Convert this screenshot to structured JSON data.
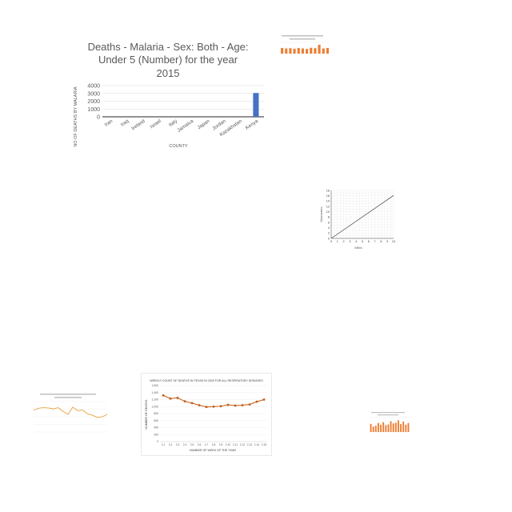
{
  "chart_data": [
    {
      "type": "bar",
      "title": "Deaths - Malaria - Sex: Both - Age: Under 5 (Number) for the year 2015",
      "title_lines": [
        "Deaths - Malaria - Sex: Both - Age:",
        "Under 5 (Number) for the year",
        "2015"
      ],
      "xlabel": "COUNTY",
      "ylabel": "NO OF DEATHS BY MALARIA",
      "categories": [
        "Iran",
        "Iraq",
        "Ireland",
        "Israel",
        "Italy",
        "Jamaica",
        "Japan",
        "Jordan",
        "Kazakhstan",
        "Kenya"
      ],
      "values": [
        0,
        0,
        0,
        0,
        0,
        0,
        0,
        0,
        0,
        3050
      ],
      "ylim": [
        0,
        4000
      ],
      "yticks": [
        0,
        1000,
        2000,
        3000,
        4000
      ],
      "grid": true,
      "bar_color": "#4472c4"
    },
    {
      "type": "bar",
      "categories": [
        "",
        "",
        "",
        "",
        "",
        "",
        "",
        "",
        "",
        "",
        "",
        ""
      ],
      "values": [
        60,
        55,
        58,
        52,
        60,
        55,
        50,
        62,
        58,
        95,
        55,
        60
      ],
      "ylim": [
        0,
        120
      ],
      "grid": true,
      "bar_color": "#ed7d31"
    },
    {
      "type": "line",
      "xlabel": "Miles",
      "ylabel": "Kilometres",
      "x": [
        0,
        10
      ],
      "y": [
        0,
        16.1
      ],
      "xlim": [
        0,
        10
      ],
      "ylim": [
        0,
        18
      ],
      "xticks": [
        0,
        1,
        2,
        3,
        4,
        5,
        6,
        7,
        8,
        9,
        10
      ],
      "yticks": [
        0,
        2,
        4,
        6,
        8,
        10,
        12,
        14,
        16,
        18
      ],
      "grid": true,
      "line_color": "#404040"
    },
    {
      "type": "line",
      "x": [
        1,
        2,
        3,
        4,
        5,
        6,
        7,
        8,
        9,
        10,
        11,
        12,
        13,
        14,
        15,
        16
      ],
      "y": [
        72,
        78,
        80,
        79,
        76,
        80,
        68,
        58,
        82,
        70,
        72,
        60,
        55,
        48,
        50,
        58
      ],
      "ylim": [
        0,
        100
      ],
      "grid": true,
      "line_color": "#e8a33a"
    },
    {
      "type": "line",
      "title": "WEEKLY COUNT OF DEATHS IN TEXAS IN 2020 FOR ALL RESPIRATORY DISEASES",
      "xlabel": "NUMBER OF WEEK OF THE YEAR",
      "ylabel": "NUMBER OF DEATHS",
      "x": [
        "2-1",
        "2-2",
        "2-3",
        "2-4",
        "2-5",
        "2-6",
        "2-7",
        "2-8",
        "2-9",
        "2-10",
        "2-11",
        "2-12",
        "2-13",
        "2-14",
        "2-15"
      ],
      "y": [
        1320,
        1230,
        1250,
        1150,
        1100,
        1040,
        990,
        1000,
        1010,
        1050,
        1030,
        1040,
        1060,
        1140,
        1200
      ],
      "ylim": [
        0,
        1600
      ],
      "yticks": [
        0,
        200,
        400,
        600,
        800,
        1000,
        1200,
        1400,
        1600
      ],
      "ytick_labels": [
        "0",
        "200",
        "400",
        "600",
        "800",
        "1,000",
        "1,200",
        "1,400",
        "1,600"
      ],
      "grid": true,
      "line_color": "#c55a11"
    },
    {
      "type": "bar",
      "categories": [
        "",
        "",
        "",
        "",
        "",
        "",
        "",
        "",
        "",
        "",
        "",
        "",
        "",
        "",
        "",
        ""
      ],
      "values": [
        45,
        30,
        35,
        50,
        40,
        55,
        38,
        42,
        60,
        48,
        52,
        65,
        44,
        58,
        40,
        50
      ],
      "ylim": [
        0,
        80
      ],
      "grid": true,
      "bar_color": "#ed7d31"
    }
  ]
}
